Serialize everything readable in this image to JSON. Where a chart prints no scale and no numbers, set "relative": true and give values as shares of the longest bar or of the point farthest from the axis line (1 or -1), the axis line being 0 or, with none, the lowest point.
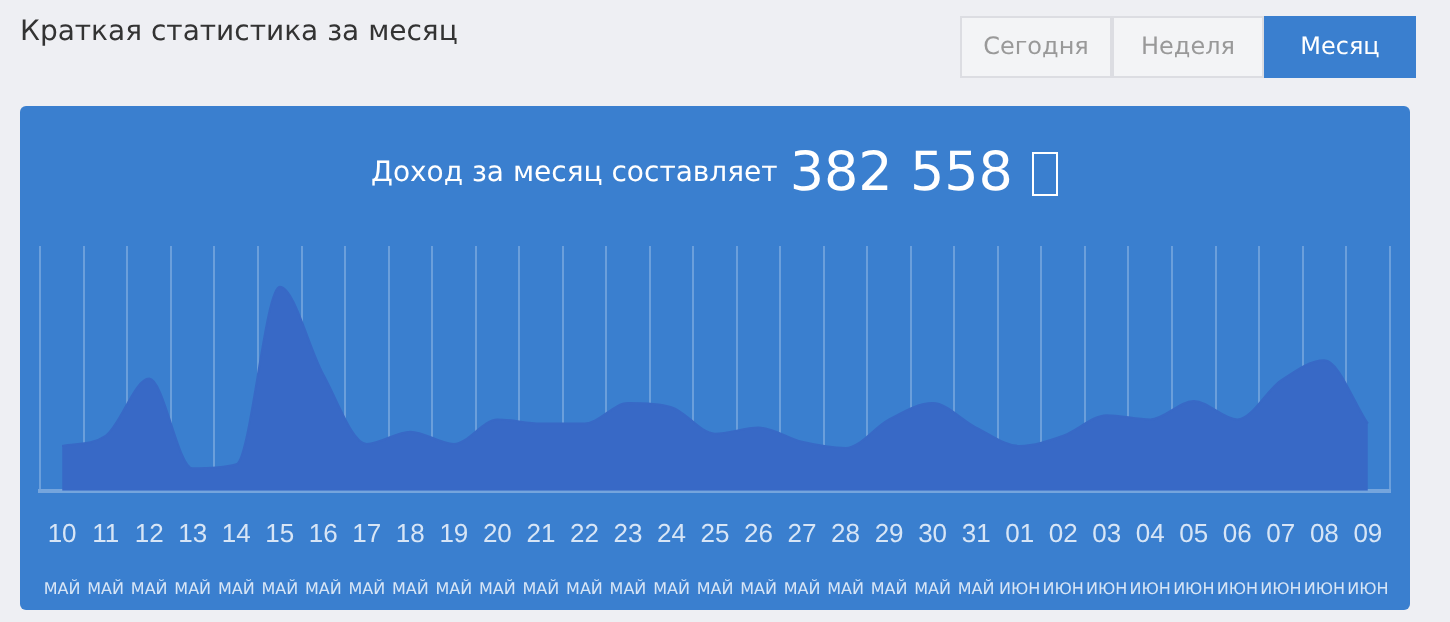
{
  "chart_data": {
    "type": "area",
    "title": "Краткая статистика за месяц",
    "subtitle": "Доход за месяц составляет",
    "annotations": [
      "382 558",
      "Сегодня",
      "Неделя",
      "Месяц"
    ],
    "categories": [
      "10 МАЙ",
      "11 МАЙ",
      "12 МАЙ",
      "13 МАЙ",
      "14 МАЙ",
      "15 МАЙ",
      "16 МАЙ",
      "17 МАЙ",
      "18 МАЙ",
      "19 МАЙ",
      "20 МАЙ",
      "21 МАЙ",
      "22 МАЙ",
      "23 МАЙ",
      "24 МАЙ",
      "25 МАЙ",
      "26 МАЙ",
      "27 МАЙ",
      "28 МАЙ",
      "29 МАЙ",
      "30 МАЙ",
      "31 МАЙ",
      "01 ИЮН",
      "02 ИЮН",
      "03 ИЮН",
      "04 ИЮН",
      "05 ИЮН",
      "06 ИЮН",
      "07 ИЮН",
      "08 ИЮН",
      "09 ИЮН"
    ],
    "series": [
      {
        "color": "#3869c6",
        "values": [
          0.22,
          0.27,
          0.55,
          0.11,
          0.13,
          1.0,
          0.57,
          0.23,
          0.29,
          0.23,
          0.35,
          0.33,
          0.33,
          0.43,
          0.41,
          0.28,
          0.31,
          0.24,
          0.21,
          0.35,
          0.43,
          0.31,
          0.22,
          0.27,
          0.37,
          0.35,
          0.44,
          0.35,
          0.54,
          0.64,
          0.33
        ]
      }
    ],
    "relative": true,
    "grid": "x",
    "legend": false,
    "marker": "none"
  }
}
